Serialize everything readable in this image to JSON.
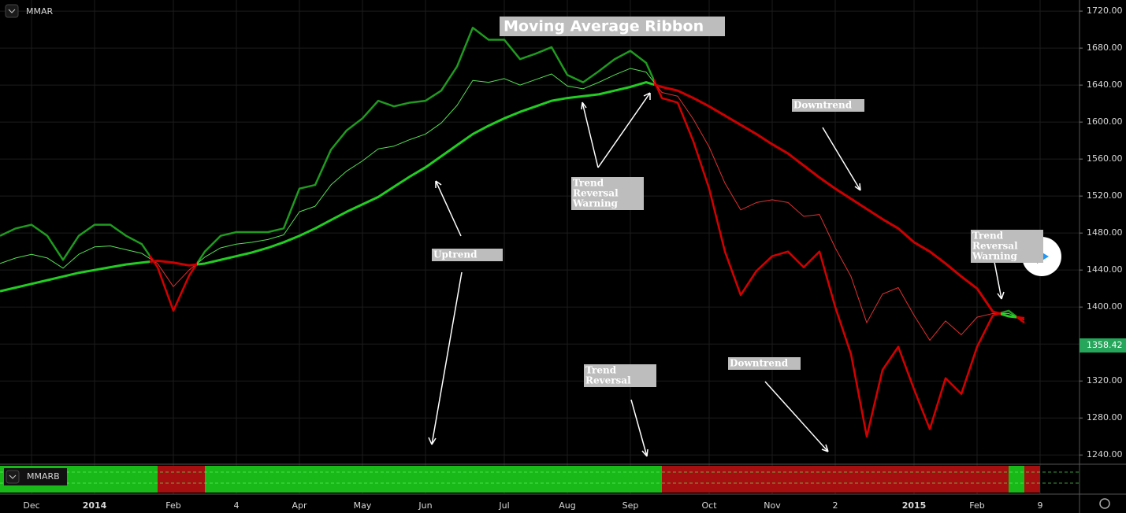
{
  "chart_data": {
    "type": "line",
    "title": "Moving Average Ribbon",
    "indicator": "MMAR",
    "sub_indicator": "MMARB",
    "categories": [
      null,
      null,
      "Dec",
      null,
      null,
      null,
      "2014",
      null,
      null,
      null,
      null,
      "Feb",
      null,
      null,
      null,
      "4",
      null,
      null,
      null,
      "Apr",
      null,
      null,
      null,
      "May",
      null,
      null,
      null,
      "Jun",
      null,
      null,
      null,
      null,
      "Jul",
      null,
      null,
      null,
      "Aug",
      null,
      null,
      null,
      "Sep",
      null,
      null,
      null,
      null,
      "Oct",
      null,
      null,
      null,
      "Nov",
      null,
      null,
      null,
      "2",
      null,
      null,
      null,
      null,
      "2015",
      null,
      null,
      null,
      "Feb",
      null,
      null,
      null,
      "9",
      null
    ],
    "series": [
      {
        "up_color": "#1f9a1f",
        "down_color": "#d40000",
        "values": [
          1477,
          1485,
          1489,
          1477,
          1451,
          1477,
          1489,
          1489,
          1477,
          1468,
          1443,
          1396,
          1434,
          1460,
          1477,
          1481,
          1481,
          1481,
          1485,
          1528,
          1532,
          1570,
          1591,
          1604,
          1623,
          1617,
          1621,
          1623,
          1634,
          1660,
          1702,
          1689,
          1689,
          1668,
          1674,
          1681,
          1651,
          1643,
          1655,
          1668,
          1677,
          1664,
          1626,
          1621,
          1579,
          1528,
          1460,
          1413,
          1439,
          1455,
          1460,
          1443,
          1460,
          1400,
          1349,
          1260,
          1332,
          1357,
          1311,
          1268,
          1323,
          1306,
          1357,
          1391,
          1396,
          1383,
          null,
          null
        ]
      },
      {
        "up_color": "#52e052",
        "down_color": "#e03030",
        "values": [
          1447,
          1453,
          1457,
          1453,
          1442,
          1457,
          1465,
          1466,
          1462,
          1458,
          1447,
          1422,
          1440,
          1454,
          1464,
          1468,
          1470,
          1473,
          1478,
          1503,
          1509,
          1532,
          1547,
          1558,
          1571,
          1574,
          1581,
          1587,
          1599,
          1618,
          1645,
          1643,
          1647,
          1640,
          1646,
          1652,
          1639,
          1636,
          1643,
          1651,
          1658,
          1654,
          1632,
          1628,
          1603,
          1573,
          1534,
          1505,
          1513,
          1516,
          1513,
          1498,
          1500,
          1464,
          1433,
          1383,
          1414,
          1421,
          1391,
          1364,
          1385,
          1370,
          1389,
          1393,
          1393,
          1386,
          null,
          null
        ]
      },
      {
        "up_color": "#22cc22",
        "down_color": "#cc0000",
        "values": [
          1417,
          1421,
          1425,
          1429,
          1433,
          1437,
          1440,
          1443,
          1446,
          1448,
          1450,
          1448,
          1445,
          1447,
          1451,
          1455,
          1459,
          1464,
          1470,
          1477,
          1485,
          1494,
          1503,
          1511,
          1519,
          1530,
          1541,
          1551,
          1563,
          1575,
          1587,
          1596,
          1604,
          1611,
          1617,
          1623,
          1626,
          1628,
          1630,
          1634,
          1638,
          1643,
          1638,
          1634,
          1626,
          1617,
          1607,
          1597,
          1587,
          1576,
          1566,
          1553,
          1540,
          1528,
          1517,
          1506,
          1495,
          1485,
          1470,
          1460,
          1447,
          1433,
          1420,
          1395,
          1390,
          1388,
          null,
          null
        ]
      }
    ],
    "ylim": [
      1230,
      1732
    ],
    "yticks": [
      {
        "value": 1240,
        "label": "1240.00"
      },
      {
        "value": 1280,
        "label": "1280.00"
      },
      {
        "value": 1320,
        "label": "1320.00"
      },
      {
        "value": 1360,
        "label": "1360.00"
      },
      {
        "value": 1400,
        "label": "1400.00"
      },
      {
        "value": 1440,
        "label": "1440.00"
      },
      {
        "value": 1480,
        "label": "1480.00"
      },
      {
        "value": 1520,
        "label": "1520.00"
      },
      {
        "value": 1560,
        "label": "1560.00"
      },
      {
        "value": 1600,
        "label": "1600.00"
      },
      {
        "value": 1640,
        "label": "1640.00"
      },
      {
        "value": 1680,
        "label": "1680.00"
      },
      {
        "value": 1720,
        "label": "1720.00"
      }
    ],
    "last_price": 1358.42,
    "last_price_color": "#26a65b",
    "grid": true,
    "annotations": [
      [
        "Uptrend"
      ],
      [
        "Trend",
        "Reversal",
        "Warning"
      ],
      [
        "Downtrend"
      ],
      [
        "Trend",
        "Reversal"
      ],
      [
        "Downtrend"
      ],
      [
        "Trend",
        "Reversal",
        "Warning"
      ]
    ]
  }
}
